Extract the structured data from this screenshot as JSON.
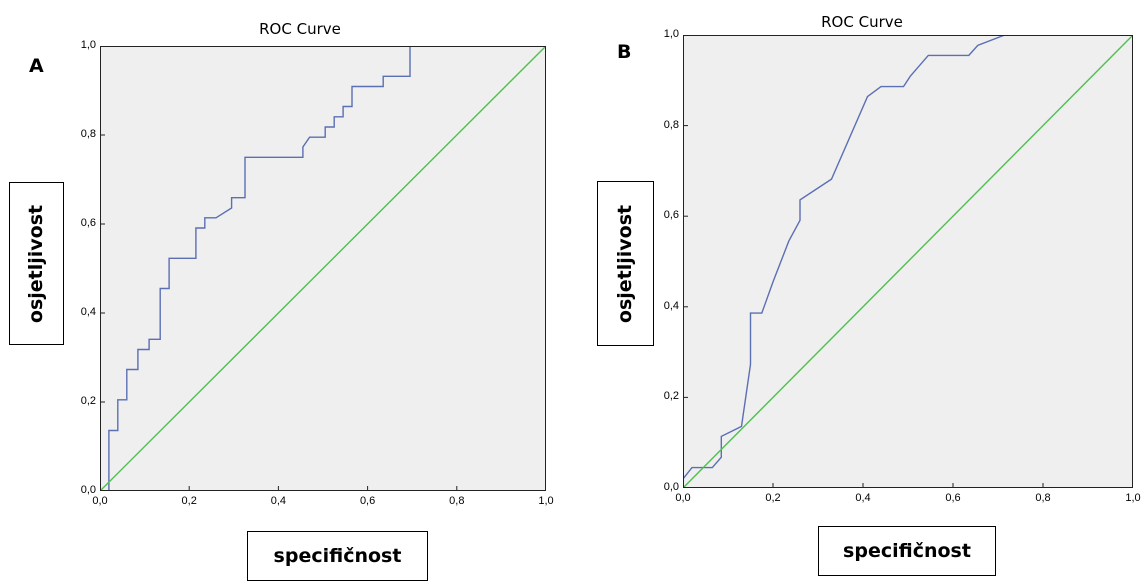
{
  "panels": [
    {
      "letter": "A",
      "title": "ROC Curve",
      "xlabel": "specifičnost",
      "ylabel": "osjetljivost"
    },
    {
      "letter": "B",
      "title": "ROC Curve",
      "xlabel": "specifičnost",
      "ylabel": "osjetljivost"
    }
  ],
  "colors": {
    "roc_line": "#5b6fb3",
    "reference_line": "#4ec04e",
    "plot_bg": "#efefef",
    "frame": "#222222"
  },
  "chart_data": [
    {
      "type": "line",
      "title": "ROC Curve",
      "xlabel": "specifičnost",
      "ylabel": "osjetljivost",
      "xlim": [
        0,
        1
      ],
      "ylim": [
        0,
        1
      ],
      "xticks": [
        "0,0",
        "0,2",
        "0,4",
        "0,6",
        "0,8",
        "1,0"
      ],
      "yticks": [
        "0,0",
        "0,2",
        "0,4",
        "0,6",
        "0,8",
        "1,0"
      ],
      "grid": false,
      "series": [
        {
          "x": [
            0.0,
            0.02,
            0.02,
            0.04,
            0.04,
            0.06,
            0.06,
            0.085,
            0.085,
            0.11,
            0.11,
            0.125,
            0.125,
            0.135,
            0.135,
            0.155,
            0.155,
            0.215,
            0.215,
            0.235,
            0.235,
            0.26,
            0.295,
            0.295,
            0.325,
            0.325,
            0.455,
            0.455,
            0.47,
            0.505,
            0.505,
            0.525,
            0.525,
            0.545,
            0.545,
            0.565,
            0.565,
            0.635,
            0.635,
            0.695,
            0.695,
            1.0
          ],
          "y": [
            0.0,
            0.0,
            0.136,
            0.136,
            0.205,
            0.205,
            0.273,
            0.273,
            0.318,
            0.318,
            0.341,
            0.341,
            0.341,
            0.341,
            0.455,
            0.455,
            0.523,
            0.523,
            0.591,
            0.591,
            0.614,
            0.614,
            0.636,
            0.659,
            0.659,
            0.75,
            0.75,
            0.773,
            0.795,
            0.795,
            0.818,
            0.818,
            0.841,
            0.841,
            0.864,
            0.864,
            0.909,
            0.909,
            0.932,
            0.932,
            1.0,
            1.0
          ]
        },
        {
          "x": [
            0,
            1
          ],
          "y": [
            0,
            1
          ]
        }
      ]
    },
    {
      "type": "line",
      "title": "ROC Curve",
      "xlabel": "specifičnost",
      "ylabel": "osjetljivost",
      "xlim": [
        0,
        1
      ],
      "ylim": [
        0,
        1
      ],
      "xticks": [
        "0,0",
        "0,2",
        "0,4",
        "0,6",
        "0,8",
        "1,0"
      ],
      "yticks": [
        "0,0",
        "0,2",
        "0,4",
        "0,6",
        "0,8",
        "1,0"
      ],
      "grid": false,
      "series": [
        {
          "x": [
            0.0,
            0.02,
            0.045,
            0.065,
            0.085,
            0.085,
            0.13,
            0.15,
            0.15,
            0.16,
            0.175,
            0.2,
            0.235,
            0.26,
            0.26,
            0.33,
            0.41,
            0.44,
            0.49,
            0.505,
            0.525,
            0.545,
            0.575,
            0.635,
            0.655,
            0.715,
            0.735,
            1.0
          ],
          "y": [
            0.02,
            0.045,
            0.045,
            0.045,
            0.068,
            0.114,
            0.136,
            0.273,
            0.386,
            0.386,
            0.386,
            0.455,
            0.545,
            0.591,
            0.636,
            0.682,
            0.864,
            0.886,
            0.886,
            0.909,
            0.932,
            0.955,
            0.955,
            0.955,
            0.977,
            1.0,
            1.0,
            1.0
          ]
        },
        {
          "x": [
            0,
            1
          ],
          "y": [
            0,
            1
          ]
        }
      ]
    }
  ]
}
